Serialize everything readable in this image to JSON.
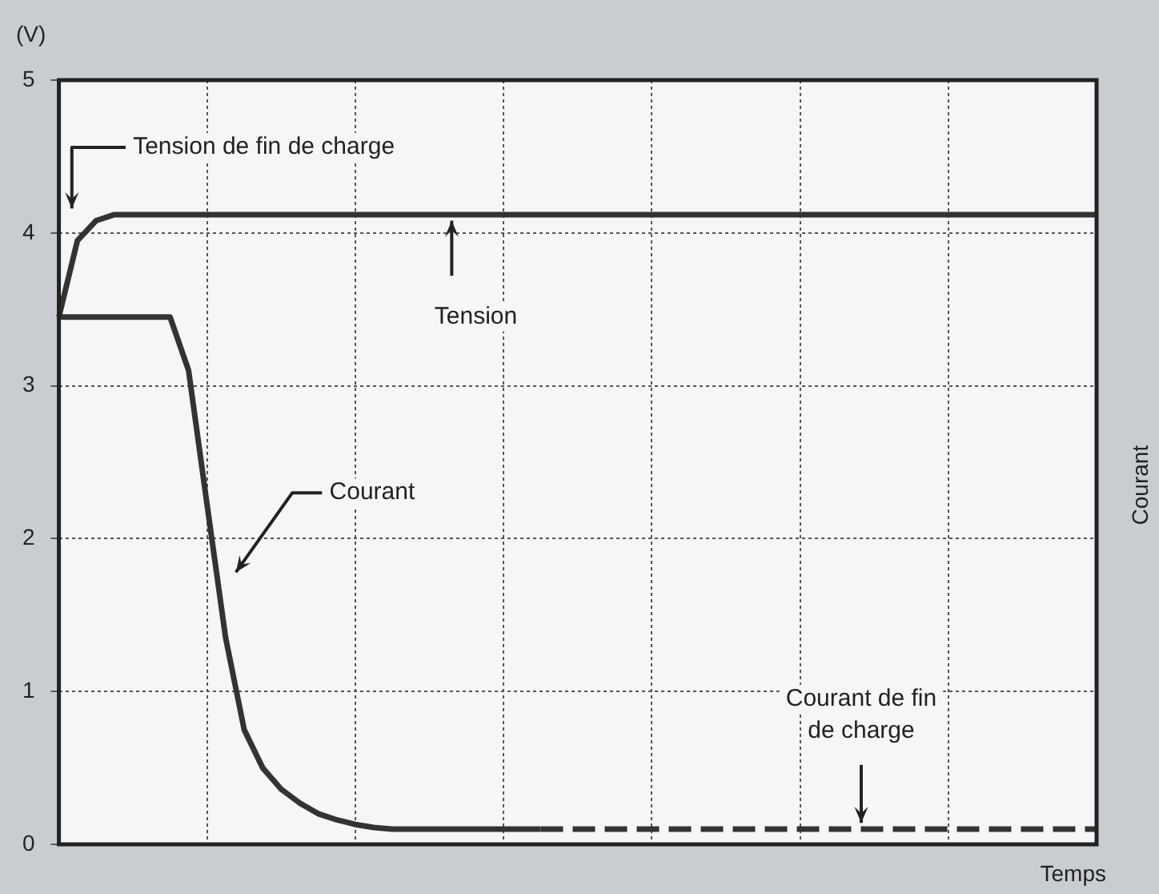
{
  "chart_data": {
    "type": "line",
    "ylabel": "(V)",
    "y2label": "Courant",
    "xlabel": "Temps",
    "categories": [
      null,
      null,
      null,
      null,
      null,
      null,
      null,
      null,
      null,
      null,
      null,
      null,
      null,
      null,
      null,
      null,
      null,
      null,
      null,
      null,
      null,
      null,
      null,
      null,
      null,
      null,
      null,
      null,
      null,
      null,
      null,
      null,
      null,
      null,
      null,
      null,
      null,
      null,
      null,
      null,
      null,
      null,
      null,
      null,
      null,
      null,
      null,
      null,
      null,
      null,
      null,
      null,
      null,
      null,
      null,
      null,
      null
    ],
    "series": [
      {
        "color": "#333333",
        "line_style": "solid",
        "values": [
          3.45,
          3.95,
          4.08,
          4.12,
          4.12,
          4.12,
          4.12,
          4.12,
          4.12,
          4.12,
          4.12,
          4.12,
          4.12,
          4.12,
          4.12,
          4.12,
          4.12,
          4.12,
          4.12,
          4.12,
          4.12,
          4.12,
          4.12,
          4.12,
          4.12,
          4.12,
          4.12,
          4.12,
          4.12,
          4.12,
          4.12,
          4.12,
          4.12,
          4.12,
          4.12,
          4.12,
          4.12,
          4.12,
          4.12,
          4.12,
          4.12,
          4.12,
          4.12,
          4.12,
          4.12,
          4.12,
          4.12,
          4.12,
          4.12,
          4.12,
          4.12,
          4.12,
          4.12,
          4.12,
          4.12,
          4.12,
          4.12
        ]
      },
      {
        "color": "#333333",
        "line_style": "solid",
        "values": [
          3.45,
          3.45,
          3.45,
          3.45,
          3.45,
          3.45,
          3.45,
          3.1,
          2.22,
          1.35,
          0.75,
          0.5,
          0.36,
          0.27,
          0.2,
          0.16,
          0.13,
          0.11,
          0.1,
          0.1,
          0.1,
          0.1,
          0.1,
          0.1,
          0.1,
          0.1,
          0.1,
          null,
          null,
          null,
          null,
          null,
          null,
          null,
          null,
          null,
          null,
          null,
          null,
          null,
          null,
          null,
          null,
          null,
          null,
          null,
          null,
          null,
          null,
          null,
          null,
          null,
          null,
          null,
          null,
          null,
          null
        ]
      },
      {
        "color": "#333333",
        "line_style": "dashed",
        "values": [
          null,
          null,
          null,
          null,
          null,
          null,
          null,
          null,
          null,
          null,
          null,
          null,
          null,
          null,
          null,
          null,
          null,
          null,
          null,
          null,
          null,
          null,
          null,
          null,
          null,
          null,
          0.1,
          0.1,
          0.1,
          0.1,
          0.1,
          0.1,
          0.1,
          0.1,
          0.1,
          0.1,
          0.1,
          0.1,
          0.1,
          0.1,
          0.1,
          0.1,
          0.1,
          0.1,
          0.1,
          0.1,
          0.1,
          0.1,
          0.1,
          0.1,
          0.1,
          0.1,
          0.1,
          0.1,
          0.1,
          0.1,
          0.1
        ]
      }
    ],
    "annotations": [
      "Tension de fin de charge",
      "Tension",
      "Courant",
      "Courant de fin de charge"
    ],
    "ylim": [
      0,
      5
    ],
    "yticks": [
      0,
      1,
      2,
      3,
      4,
      5
    ],
    "grid": true,
    "legend": false,
    "tick_labels": "y",
    "marker": "none"
  }
}
